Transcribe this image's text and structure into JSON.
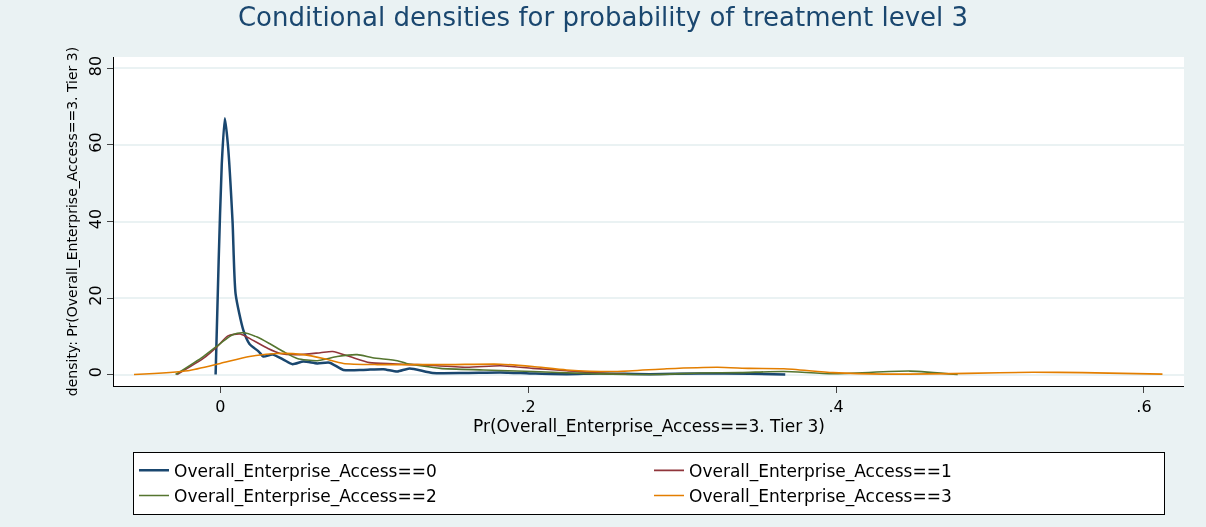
{
  "chart_data": {
    "type": "line",
    "title": "Conditional densities for probability of treatment level 3",
    "xlabel": "Pr(Overall_Enterprise_Access==3. Tier 3)",
    "ylabel": "density: Pr(Overall_Enterprise_Access==3. Tier 3)",
    "xlim": [
      -0.069,
      0.626
    ],
    "ylim": [
      -3,
      83
    ],
    "xticks": [
      0,
      {
        "value": 0.2,
        "label": ".2"
      },
      {
        "value": 0.4,
        "label": ".4"
      },
      {
        "value": 0.6,
        "label": ".6"
      }
    ],
    "yticks": [
      0,
      20,
      40,
      60,
      80
    ],
    "grid": "y",
    "legend": "bottom",
    "marker": "none",
    "line_style": "solid",
    "series": [
      {
        "name": "Overall_Enterprise_Access==0",
        "color": "#1a476f",
        "x": [
          -0.003,
          -0.001,
          0.001,
          0.003,
          0.005,
          0.008,
          0.01,
          0.015,
          0.019,
          0.025,
          0.028,
          0.034,
          0.041,
          0.047,
          0.054,
          0.063,
          0.071,
          0.08,
          0.093,
          0.106,
          0.115,
          0.123,
          0.138,
          0.16,
          0.182,
          0.201,
          0.225,
          0.247,
          0.279,
          0.312,
          0.344,
          0.367
        ],
        "values": [
          0,
          30,
          55,
          67,
          60,
          40,
          21,
          11.6,
          8,
          6,
          4.7,
          5.2,
          3.9,
          2.7,
          3.4,
          2.9,
          3.1,
          1.2,
          1.2,
          1.4,
          0.8,
          1.6,
          0.4,
          0.4,
          0.5,
          0.3,
          0.1,
          0.3,
          0.1,
          0.3,
          0.2,
          0
        ]
      },
      {
        "name": "Overall_Enterprise_Access==1",
        "color": "#90353b",
        "x": [
          -0.028,
          -0.011,
          -0.002,
          0.005,
          0.013,
          0.021,
          0.031,
          0.039,
          0.05,
          0.065,
          0.073,
          0.084,
          0.097,
          0.112,
          0.123,
          0.128,
          0.16,
          0.182,
          0.203,
          0.225,
          0.253,
          0.264
        ],
        "values": [
          0,
          4.2,
          7.3,
          10.1,
          10.6,
          9,
          6.8,
          5.5,
          5.2,
          5.7,
          6,
          4.7,
          3.1,
          2.8,
          2.6,
          2.6,
          1.9,
          2.3,
          1.6,
          1,
          0.2,
          0.1
        ]
      },
      {
        "name": "Overall_Enterprise_Access==2",
        "color": "#55752f",
        "x": [
          -0.029,
          -0.011,
          0,
          0.008,
          0.015,
          0.024,
          0.032,
          0.041,
          0.05,
          0.063,
          0.076,
          0.089,
          0.099,
          0.115,
          0.121,
          0.143,
          0.171,
          0.203,
          0.236,
          0.279,
          0.312,
          0.338,
          0.366,
          0.398,
          0.448,
          0.479
        ],
        "values": [
          0,
          4.7,
          8.1,
          10.4,
          10.9,
          9.8,
          8.1,
          6,
          4.2,
          3.6,
          4.7,
          5.2,
          4.4,
          3.6,
          2.9,
          1.6,
          1.2,
          0.8,
          0.3,
          0,
          0.4,
          0.5,
          0.8,
          0.2,
          0.9,
          0
        ]
      },
      {
        "name": "Overall_Enterprise_Access==3",
        "color": "#e37e00",
        "x": [
          -0.056,
          -0.021,
          0,
          0.019,
          0.037,
          0.054,
          0.067,
          0.08,
          0.102,
          0.117,
          0.149,
          0.182,
          0.203,
          0.225,
          0.258,
          0.29,
          0.323,
          0.344,
          0.366,
          0.398,
          0.431,
          0.485,
          0.528,
          0.56,
          0.612
        ],
        "values": [
          0,
          1,
          2.9,
          4.7,
          5.5,
          5.2,
          4.2,
          2.9,
          2.6,
          2.6,
          2.6,
          2.7,
          2.1,
          1.2,
          0.8,
          1.5,
          1.9,
          1.6,
          1.5,
          0.5,
          0.1,
          0.3,
          0.6,
          0.5,
          0.1
        ]
      }
    ]
  }
}
